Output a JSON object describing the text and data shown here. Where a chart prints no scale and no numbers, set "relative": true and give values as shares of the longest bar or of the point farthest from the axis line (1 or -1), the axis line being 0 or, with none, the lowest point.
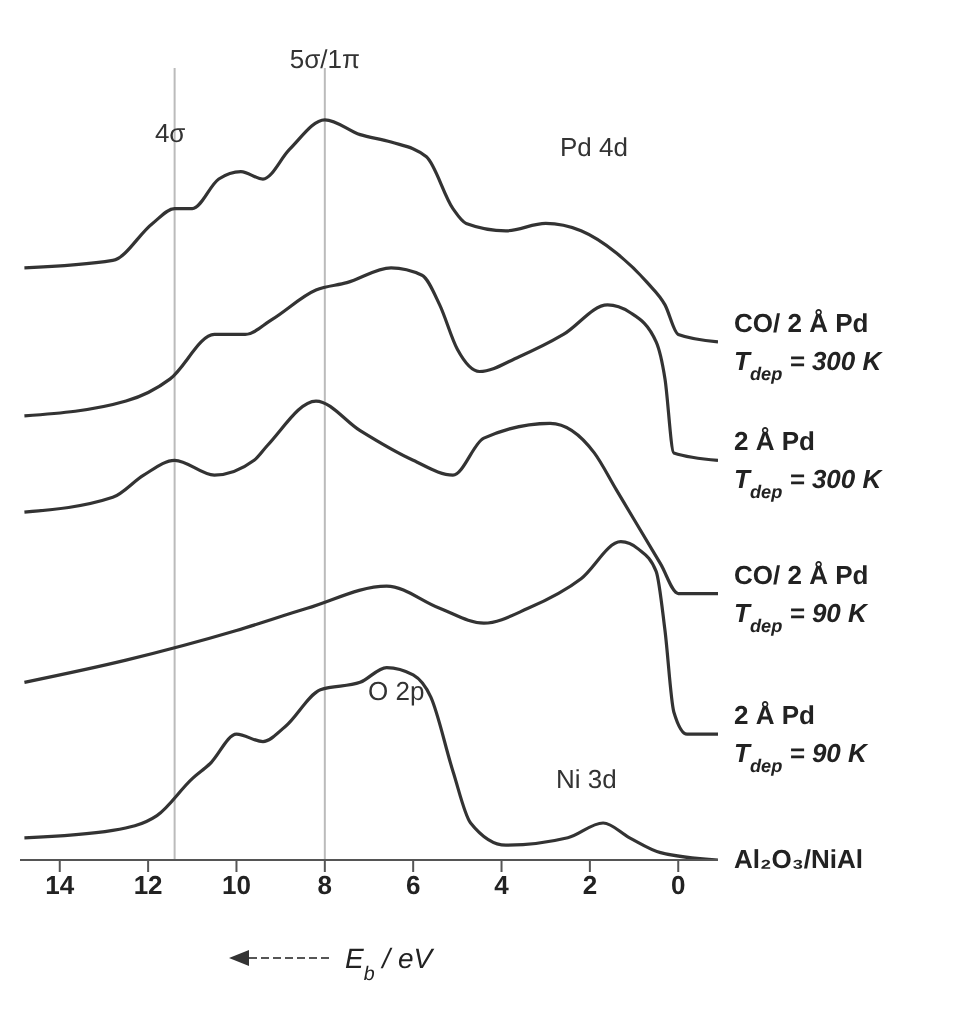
{
  "chart_data": {
    "type": "line",
    "relative": true,
    "xlabel": "E$_{b}$ / eV",
    "xlim": [
      14.9,
      -0.9
    ],
    "xticks": [
      14,
      12,
      10,
      8,
      6,
      4,
      2,
      0
    ],
    "grid": false,
    "legend": false,
    "marker": "none",
    "line_style": "solid",
    "annotations": [
      {
        "text": "4σ",
        "x": 11.5,
        "y": 0.97
      },
      {
        "text": "5σ/1π",
        "x": 8.0,
        "y": 1.07
      },
      "Pd 4d",
      "O 2p",
      "Ni 3d"
    ],
    "ref_lines": [
      {
        "axis": "x",
        "value": 11.4,
        "color": "#bbbbbb"
      },
      {
        "axis": "x",
        "value": 8.0,
        "color": "#bbbbbb"
      }
    ],
    "series": [
      {
        "name": "CO/ 2 Å Pd\nT$_{dep}$ = 300 K",
        "color": "#333333",
        "x": [
          14.8,
          12.8,
          11.9,
          11.4,
          11.0,
          10.4,
          9.9,
          9.4,
          8.8,
          8.0,
          7.2,
          6.5,
          5.7,
          5.1,
          4.8,
          3.9,
          3.0,
          2.2,
          1.4,
          0.7,
          0.3,
          0.0,
          -0.9
        ],
        "values": [
          0.8,
          0.81,
          0.86,
          0.88,
          0.88,
          0.92,
          0.93,
          0.92,
          0.96,
          1.0,
          0.98,
          0.97,
          0.95,
          0.88,
          0.86,
          0.85,
          0.86,
          0.85,
          0.82,
          0.78,
          0.75,
          0.71,
          0.7
        ]
      },
      {
        "name": "2 Å Pd\nT$_{dep}$ = 300 K",
        "color": "#333333",
        "x": [
          14.8,
          12.5,
          11.5,
          10.5,
          9.8,
          9.2,
          8.2,
          7.5,
          6.5,
          5.8,
          5.4,
          5.0,
          4.5,
          3.6,
          2.6,
          1.6,
          1.1,
          0.5,
          0.3,
          0.1,
          -0.9
        ],
        "values": [
          0.6,
          0.62,
          0.65,
          0.71,
          0.71,
          0.73,
          0.77,
          0.78,
          0.8,
          0.79,
          0.75,
          0.69,
          0.66,
          0.68,
          0.71,
          0.75,
          0.74,
          0.7,
          0.65,
          0.55,
          0.54
        ]
      },
      {
        "name": "CO/ 2 Å Pd\nT$_{dep}$ = 90 K",
        "color": "#333333",
        "x": [
          14.8,
          12.8,
          12.1,
          11.4,
          10.5,
          9.6,
          9.3,
          8.2,
          7.2,
          6.0,
          5.1,
          4.4,
          2.9,
          1.9,
          1.4,
          1.0,
          0.4,
          0.0,
          -0.9
        ],
        "values": [
          0.47,
          0.49,
          0.52,
          0.54,
          0.52,
          0.54,
          0.56,
          0.62,
          0.58,
          0.54,
          0.52,
          0.57,
          0.59,
          0.55,
          0.5,
          0.46,
          0.4,
          0.36,
          0.36
        ]
      },
      {
        "name": "2 Å Pd\nT$_{dep}$ = 90 K",
        "color": "#333333",
        "x": [
          14.8,
          12.5,
          10.0,
          8.4,
          6.6,
          5.4,
          4.4,
          3.4,
          2.2,
          1.3,
          0.9,
          0.5,
          0.3,
          0.1,
          -0.2,
          -0.9
        ],
        "values": [
          0.24,
          0.27,
          0.31,
          0.34,
          0.37,
          0.34,
          0.32,
          0.34,
          0.38,
          0.43,
          0.42,
          0.39,
          0.31,
          0.2,
          0.17,
          0.17
        ]
      },
      {
        "name": "Al₂O₃/NiAl",
        "color": "#333333",
        "x": [
          14.8,
          12.8,
          11.8,
          11.0,
          10.6,
          10.0,
          9.4,
          8.9,
          8.1,
          7.2,
          6.6,
          6.0,
          5.6,
          5.1,
          4.7,
          3.9,
          2.5,
          1.7,
          1.1,
          0.4,
          -0.9
        ],
        "values": [
          0.03,
          0.04,
          0.06,
          0.11,
          0.13,
          0.17,
          0.16,
          0.18,
          0.23,
          0.24,
          0.26,
          0.25,
          0.22,
          0.12,
          0.05,
          0.02,
          0.03,
          0.05,
          0.03,
          0.01,
          0.0
        ]
      }
    ]
  }
}
